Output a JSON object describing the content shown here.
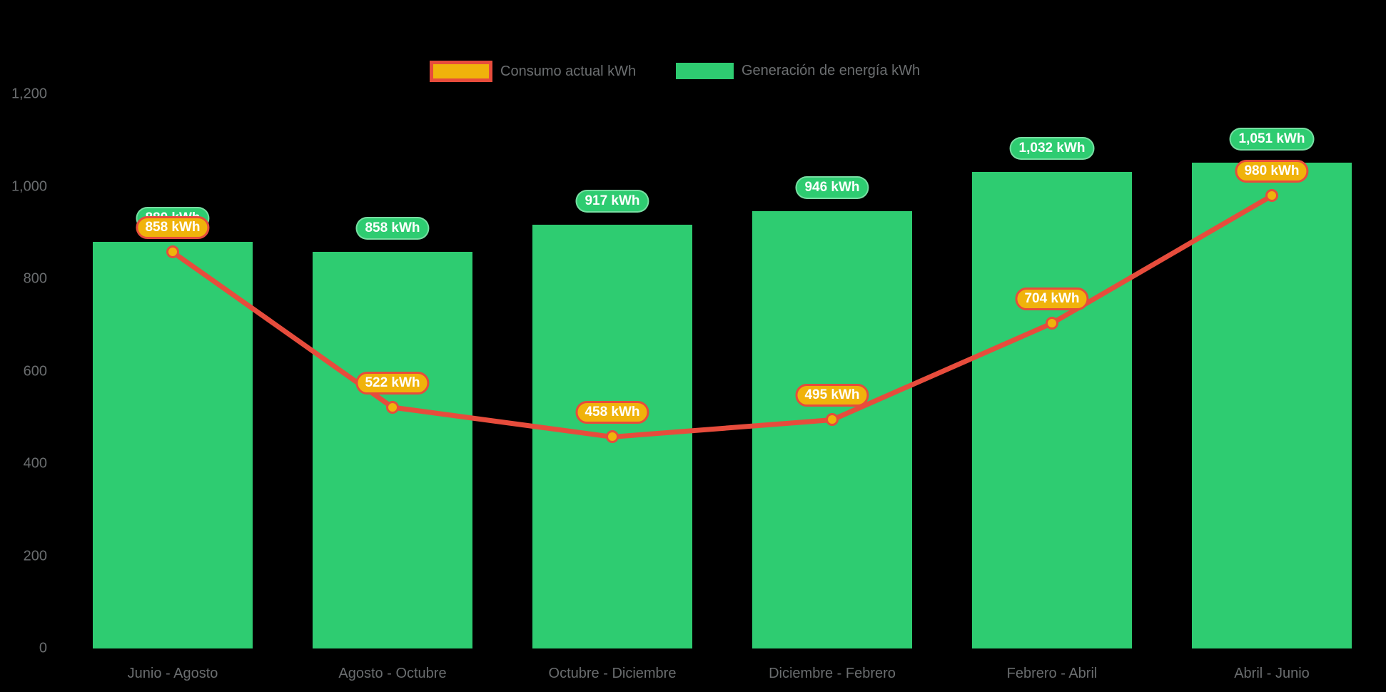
{
  "chart_data": {
    "type": "bar+line",
    "categories": [
      "Junio - Agosto",
      "Agosto - Octubre",
      "Octubre - Diciembre",
      "Diciembre - Febrero",
      "Febrero - Abril",
      "Abril - Junio"
    ],
    "series": [
      {
        "name": "Consumo actual kWh",
        "type": "line",
        "values": [
          858,
          522,
          458,
          495,
          704,
          980
        ],
        "labels": [
          "858 kWh",
          "522 kWh",
          "458 kWh",
          "495 kWh",
          "704 kWh",
          "980 kWh"
        ]
      },
      {
        "name": "Generación de energía kWh",
        "type": "bar",
        "values": [
          880,
          858,
          917,
          946,
          1032,
          1051
        ],
        "labels": [
          "880 kWh",
          "858 kWh",
          "917 kWh",
          "946 kWh",
          "1,032 kWh",
          "1,051 kWh"
        ]
      }
    ],
    "y_ticks": [
      "0",
      "200",
      "400",
      "600",
      "800",
      "1,000",
      "1,200"
    ],
    "y_tick_values": [
      0,
      200,
      400,
      600,
      800,
      1000,
      1200
    ],
    "ylim": [
      0,
      1200
    ],
    "grid": false,
    "legend_position": "top",
    "colors": {
      "bar_green": "#2ecc71",
      "line_red": "#e74c3c",
      "point_orange": "#f0b30b",
      "pill_text": "#ffffff",
      "axis_text": "#6a6d6f",
      "background": "#000000"
    }
  }
}
